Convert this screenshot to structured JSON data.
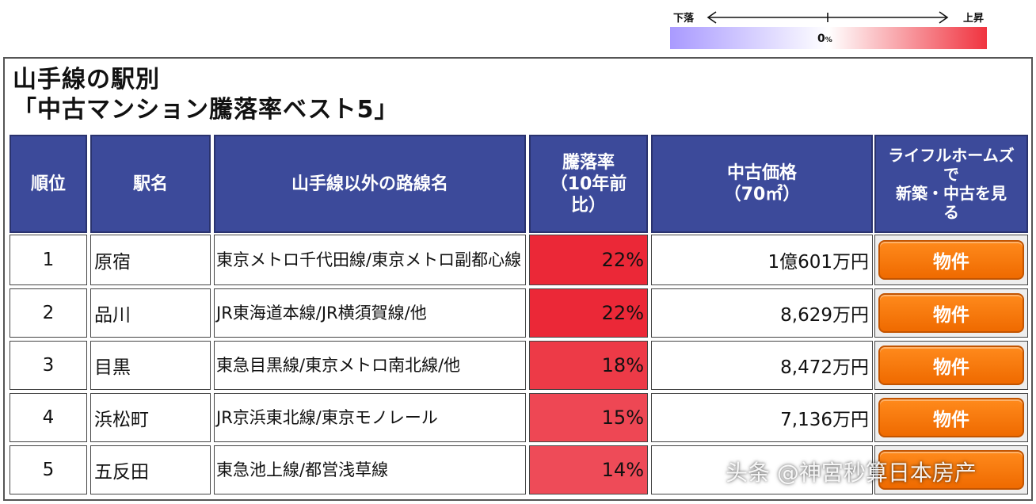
{
  "legend": {
    "left_label": "下落",
    "right_label": "上昇",
    "center_label": "0",
    "center_unit": "%",
    "colors": {
      "down": "#a99aff",
      "neutral": "#ffffff",
      "up": "#f0333f"
    }
  },
  "title": {
    "line1": "山手線の駅別",
    "line2": "「中古マンション騰落率ベスト5」"
  },
  "headers": {
    "rank": "順位",
    "station": "駅名",
    "routes": "山手線以外の路線名",
    "rate": "騰落率\n（10年前\n比）",
    "price": "中古価格\n（70㎡）",
    "link": "ライフルホームズ\nで\n新築・中古を見\nる"
  },
  "rows": [
    {
      "rank": "1",
      "station": "原宿",
      "routes": "東京メトロ千代田線/東京メトロ副都心線",
      "rate": "22%",
      "rate_value": 22,
      "price": "1億601万円",
      "button": "物件"
    },
    {
      "rank": "2",
      "station": "品川",
      "routes": "JR東海道本線/JR横須賀線/他",
      "rate": "22%",
      "rate_value": 22,
      "price": "8,629万円",
      "button": "物件"
    },
    {
      "rank": "3",
      "station": "目黒",
      "routes": "東急目黒線/東京メトロ南北線/他",
      "rate": "18%",
      "rate_value": 18,
      "price": "8,472万円",
      "button": "物件"
    },
    {
      "rank": "4",
      "station": "浜松町",
      "routes": "JR京浜東北線/東京モノレール",
      "rate": "15%",
      "rate_value": 15,
      "price": "7,136万円",
      "button": "物件"
    },
    {
      "rank": "5",
      "station": "五反田",
      "routes": "東急池上線/都営浅草線",
      "rate": "14%",
      "rate_value": 14,
      "price": "",
      "button": ""
    }
  ],
  "watermark": "头条 @神宮秒算日本房产",
  "colors": {
    "header_bg": "#3c4a9a",
    "rate_scale_max": "#f0333f",
    "button": "#ef6a00"
  }
}
